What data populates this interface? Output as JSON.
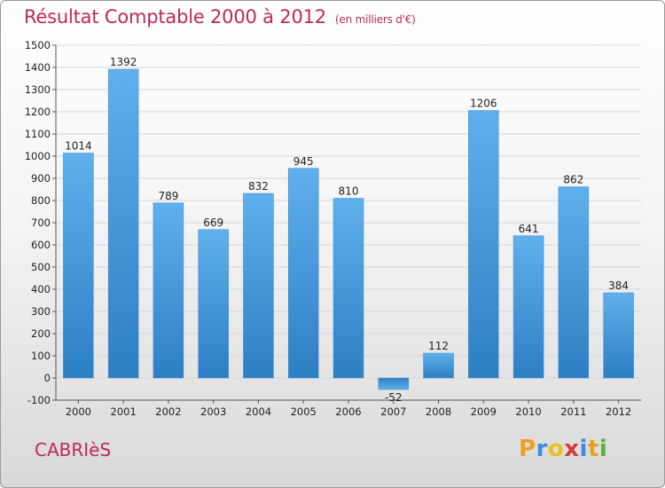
{
  "header": {
    "title": "Résultat Comptable 2000 à 2012",
    "subtitle": "(en milliers d'€)"
  },
  "footer": {
    "commune": "CABRIèS",
    "logo_letters": [
      "P",
      "r",
      "o",
      "x",
      "i",
      "t",
      "i"
    ],
    "logo_colors": [
      "#f0a020",
      "#3a8fd8",
      "#e8c020",
      "#d83a3a",
      "#3a8fd8",
      "#e8a020",
      "#58b040"
    ]
  },
  "chart_data": {
    "type": "bar",
    "title": "Résultat Comptable 2000 à 2012",
    "subtitle": "(en milliers d'€)",
    "categories": [
      "2000",
      "2001",
      "2002",
      "2003",
      "2004",
      "2005",
      "2006",
      "2007",
      "2008",
      "2009",
      "2010",
      "2011",
      "2012"
    ],
    "values": [
      1014,
      1392,
      789,
      669,
      832,
      945,
      810,
      -52,
      112,
      1206,
      641,
      862,
      384
    ],
    "value_labels": [
      "1014",
      "1392",
      "789",
      "669",
      "832",
      "945",
      "810",
      "-52",
      "112",
      "1206",
      "641",
      "862",
      "384"
    ],
    "ylim": [
      -100,
      1500
    ],
    "yticks": [
      -100,
      0,
      100,
      200,
      300,
      400,
      500,
      600,
      700,
      800,
      900,
      1000,
      1100,
      1200,
      1300,
      1400,
      1500
    ],
    "ytick_labels": [
      "-100",
      "0",
      "100",
      "200",
      "300",
      "400",
      "500",
      "600",
      "700",
      "800",
      "900",
      "1000",
      "1100",
      "1200",
      "1300",
      "1400",
      "1500"
    ],
    "grid": true,
    "bar_color": "#4a9fe0"
  }
}
